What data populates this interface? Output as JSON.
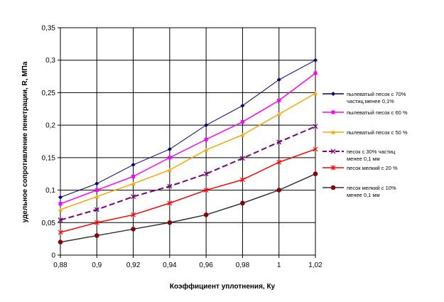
{
  "chart_data": {
    "type": "line",
    "xlabel": "Коэффициент уплотнения, Ку",
    "ylabel": "удельное сопротивление пенетрации, R, МПа",
    "x": [
      0.88,
      0.9,
      0.92,
      0.94,
      0.96,
      0.98,
      1,
      1.02
    ],
    "x_tick_labels": [
      "0,88",
      "0,9",
      "0,92",
      "0,94",
      "0,96",
      "0,98",
      "1",
      "1,02"
    ],
    "y_ticks": [
      0,
      0.05,
      0.1,
      0.15,
      0.2,
      0.25,
      0.3,
      0.35
    ],
    "y_tick_labels": [
      "0",
      "0,05",
      "0,1",
      "0,15",
      "0,2",
      "0,25",
      "0,3",
      "0,35"
    ],
    "ylim": [
      0,
      0.35
    ],
    "grid": true,
    "legend_position": "right",
    "series": [
      {
        "name": "пылеватый песок с 70% частиц менее 0,1%",
        "legend_lines": [
          "пылеватый песок с 70%",
          "частиц менее 0,1%"
        ],
        "color": "#000080",
        "marker": "diamond",
        "dash": "solid",
        "values": [
          0.089,
          0.11,
          0.139,
          0.163,
          0.2,
          0.23,
          0.27,
          0.3
        ]
      },
      {
        "name": "пылеватый песок с 60 %",
        "legend_lines": [
          "пылеватый песок с 60 %"
        ],
        "color": "#FF00FF",
        "marker": "square",
        "dash": "solid",
        "values": [
          0.079,
          0.1,
          0.121,
          0.15,
          0.178,
          0.205,
          0.238,
          0.28
        ]
      },
      {
        "name": "пылеватый песок с 50 %",
        "legend_lines": [
          "пылеватый песок с 50 %"
        ],
        "color": "#FFA500",
        "marker": "triangle",
        "dash": "solid",
        "values": [
          0.07,
          0.09,
          0.11,
          0.131,
          0.162,
          0.185,
          0.217,
          0.249
        ]
      },
      {
        "name": "песок с 30% частиц менее 0,1 мм",
        "legend_lines": [
          "песок с 30% частиц",
          "менее 0,1 мм"
        ],
        "color": "#800080",
        "marker": "x",
        "dash": "dashed",
        "values": [
          0.054,
          0.07,
          0.09,
          0.106,
          0.125,
          0.149,
          0.174,
          0.198
        ]
      },
      {
        "name": "песок мелкий с 20 %",
        "legend_lines": [
          "песок мелкий с 20 %"
        ],
        "color": "#FF0000",
        "marker": "star",
        "dash": "solid",
        "values": [
          0.035,
          0.05,
          0.062,
          0.08,
          0.1,
          0.116,
          0.143,
          0.163
        ]
      },
      {
        "name": "песок мелкий с 10% менее 0,1 мм",
        "legend_lines": [
          "песок мелкий с 10%",
          "менее 0,1 мм"
        ],
        "color": "#333333",
        "marker_color": "#8B0000",
        "marker": "circle",
        "dash": "solid",
        "values": [
          0.02,
          0.03,
          0.04,
          0.05,
          0.062,
          0.08,
          0.1,
          0.125
        ]
      }
    ]
  }
}
